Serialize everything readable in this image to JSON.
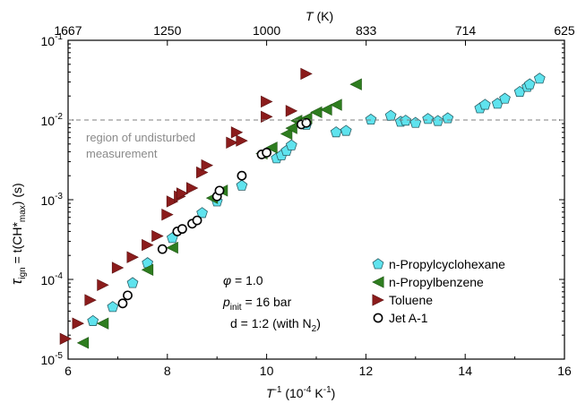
{
  "chart_data": {
    "type": "scatter",
    "x_label": {
      "main": "T",
      "sup": "-1",
      "unit": "(10",
      "unit_exp": "-4",
      "unit_mid": " K",
      "unit_exp2": "-1",
      "unit_close": ")"
    },
    "y_label": {
      "tau": "τ",
      "sub": "ign",
      "eq": " = t(CH*",
      "max": "max",
      "close": ") (s)"
    },
    "top_label": {
      "T": "T",
      "unit": " (K)"
    },
    "x_ticks": [
      "6",
      "8",
      "10",
      "12",
      "14",
      "16"
    ],
    "top_ticks": [
      "1667",
      "1250",
      "1000",
      "833",
      "714",
      "625"
    ],
    "y_ticks": [
      {
        "base": "10",
        "exp": "-5"
      },
      {
        "base": "10",
        "exp": "-4"
      },
      {
        "base": "10",
        "exp": "-3"
      },
      {
        "base": "10",
        "exp": "-2"
      },
      {
        "base": "10",
        "exp": "-1"
      }
    ],
    "xlim": [
      6,
      16
    ],
    "ylim": [
      1e-05,
      0.1
    ],
    "y_scale": "log",
    "reference_line": {
      "y": 0.01,
      "text_line1": "region of undisturbed",
      "text_line2": "measurement"
    },
    "conditions": {
      "phi_sym": "φ",
      "phi": " = 1.0",
      "p_sym": "p",
      "p_sub": "init",
      "p": " = 16 bar",
      "d": "d = 1:2 (with N",
      "d_sub": "2",
      "d_close": ")"
    },
    "legend_position": "lower-right",
    "series": [
      {
        "name": "n-Propylcyclohexane",
        "marker": "pentagon",
        "color": "#5fe3ee",
        "points": [
          [
            6.5,
            3e-05
          ],
          [
            6.9,
            4.5e-05
          ],
          [
            7.3,
            9e-05
          ],
          [
            7.6,
            0.00016
          ],
          [
            8.1,
            0.00033
          ],
          [
            8.7,
            0.00068
          ],
          [
            9.0,
            0.00095
          ],
          [
            9.5,
            0.0015
          ],
          [
            10.2,
            0.0033
          ],
          [
            10.3,
            0.0036
          ],
          [
            10.4,
            0.0041
          ],
          [
            10.5,
            0.0048
          ],
          [
            10.8,
            0.0087
          ],
          [
            11.4,
            0.007
          ],
          [
            11.6,
            0.0073
          ],
          [
            12.1,
            0.0101
          ],
          [
            12.5,
            0.0113
          ],
          [
            12.7,
            0.0095
          ],
          [
            12.8,
            0.0098
          ],
          [
            13.0,
            0.0092
          ],
          [
            13.25,
            0.0103
          ],
          [
            13.45,
            0.0097
          ],
          [
            13.65,
            0.0105
          ],
          [
            14.3,
            0.014
          ],
          [
            14.4,
            0.0155
          ],
          [
            14.65,
            0.016
          ],
          [
            14.8,
            0.0185
          ],
          [
            15.1,
            0.0225
          ],
          [
            15.25,
            0.026
          ],
          [
            15.3,
            0.028
          ],
          [
            15.5,
            0.033
          ]
        ]
      },
      {
        "name": "n-Propylbenzene",
        "marker": "triangle-left",
        "color": "#2e7d1f",
        "points": [
          [
            6.3,
            1.6e-05
          ],
          [
            6.7,
            2.8e-05
          ],
          [
            7.6,
            0.000132
          ],
          [
            8.1,
            0.00025
          ],
          [
            8.9,
            0.00105
          ],
          [
            9.1,
            0.0013
          ],
          [
            9.9,
            0.0038
          ],
          [
            10.1,
            0.0045
          ],
          [
            10.4,
            0.0067
          ],
          [
            10.5,
            0.0079
          ],
          [
            10.6,
            0.0098
          ],
          [
            10.8,
            0.0105
          ],
          [
            11.0,
            0.0125
          ],
          [
            11.2,
            0.0135
          ],
          [
            11.4,
            0.0155
          ],
          [
            11.8,
            0.028
          ]
        ]
      },
      {
        "name": "Toluene",
        "marker": "triangle-right",
        "color": "#8b1c1c",
        "points": [
          [
            5.95,
            1.8e-05
          ],
          [
            6.2,
            2.8e-05
          ],
          [
            6.45,
            5.5e-05
          ],
          [
            6.7,
            8.5e-05
          ],
          [
            7.0,
            0.00014
          ],
          [
            7.3,
            0.00019
          ],
          [
            7.6,
            0.00027
          ],
          [
            7.8,
            0.00035
          ],
          [
            8.0,
            0.00065
          ],
          [
            8.1,
            0.00095
          ],
          [
            8.25,
            0.0011
          ],
          [
            8.3,
            0.0012
          ],
          [
            8.5,
            0.0014
          ],
          [
            8.7,
            0.0022
          ],
          [
            8.8,
            0.0027
          ],
          [
            9.3,
            0.0052
          ],
          [
            9.5,
            0.0055
          ],
          [
            10.0,
            0.011
          ],
          [
            10.5,
            0.013
          ],
          [
            10.8,
            0.038
          ],
          [
            9.4,
            0.007
          ],
          [
            10.0,
            0.017
          ]
        ]
      },
      {
        "name": "Jet A-1",
        "marker": "circle",
        "color": "#000000",
        "points": [
          [
            7.1,
            5e-05
          ],
          [
            7.2,
            6.3e-05
          ],
          [
            7.9,
            0.00024
          ],
          [
            8.2,
            0.0004
          ],
          [
            8.3,
            0.00043
          ],
          [
            8.5,
            0.0005
          ],
          [
            8.6,
            0.00055
          ],
          [
            9.0,
            0.0011
          ],
          [
            9.05,
            0.0013
          ],
          [
            9.5,
            0.002
          ],
          [
            9.9,
            0.0037
          ],
          [
            10.0,
            0.0039
          ],
          [
            10.7,
            0.0088
          ],
          [
            10.8,
            0.0092
          ]
        ]
      }
    ]
  }
}
